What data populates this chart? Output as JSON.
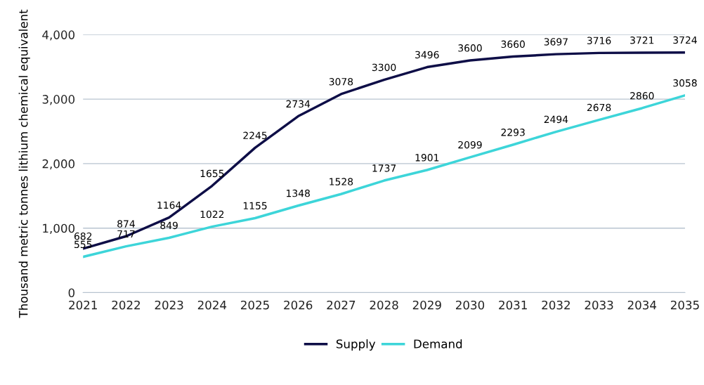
{
  "chart_data": {
    "type": "line",
    "x": [
      2021,
      2022,
      2023,
      2024,
      2025,
      2026,
      2027,
      2028,
      2029,
      2030,
      2031,
      2032,
      2033,
      2034,
      2035
    ],
    "series": [
      {
        "name": "Supply",
        "color": "#0e0e47",
        "values": [
          682,
          874,
          1164,
          1655,
          2245,
          2734,
          3078,
          3300,
          3496,
          3600,
          3660,
          3697,
          3716,
          3721,
          3724
        ]
      },
      {
        "name": "Demand",
        "color": "#3dd5d9",
        "values": [
          555,
          717,
          849,
          1022,
          1155,
          1348,
          1528,
          1737,
          1901,
          2099,
          2293,
          2494,
          2678,
          2860,
          3058
        ]
      }
    ],
    "ylabel": "Thousand metric tonnes lithium chemical equivalent",
    "xlim": [
      2021,
      2035
    ],
    "xticks": [
      2021,
      2022,
      2023,
      2024,
      2025,
      2026,
      2027,
      2028,
      2029,
      2030,
      2031,
      2032,
      2033,
      2034,
      2035
    ],
    "ylim": [
      0,
      4000
    ],
    "yticks": [
      0,
      {
        "value": 1000,
        "label": "1,000"
      },
      {
        "value": 2000,
        "label": "2,000"
      },
      {
        "value": 3000,
        "label": "3,000"
      },
      {
        "value": 4000,
        "label": "4,000"
      }
    ],
    "grid": "y",
    "legend": "bottom",
    "data_labels": true,
    "marker": "none",
    "line_style": "solid"
  }
}
